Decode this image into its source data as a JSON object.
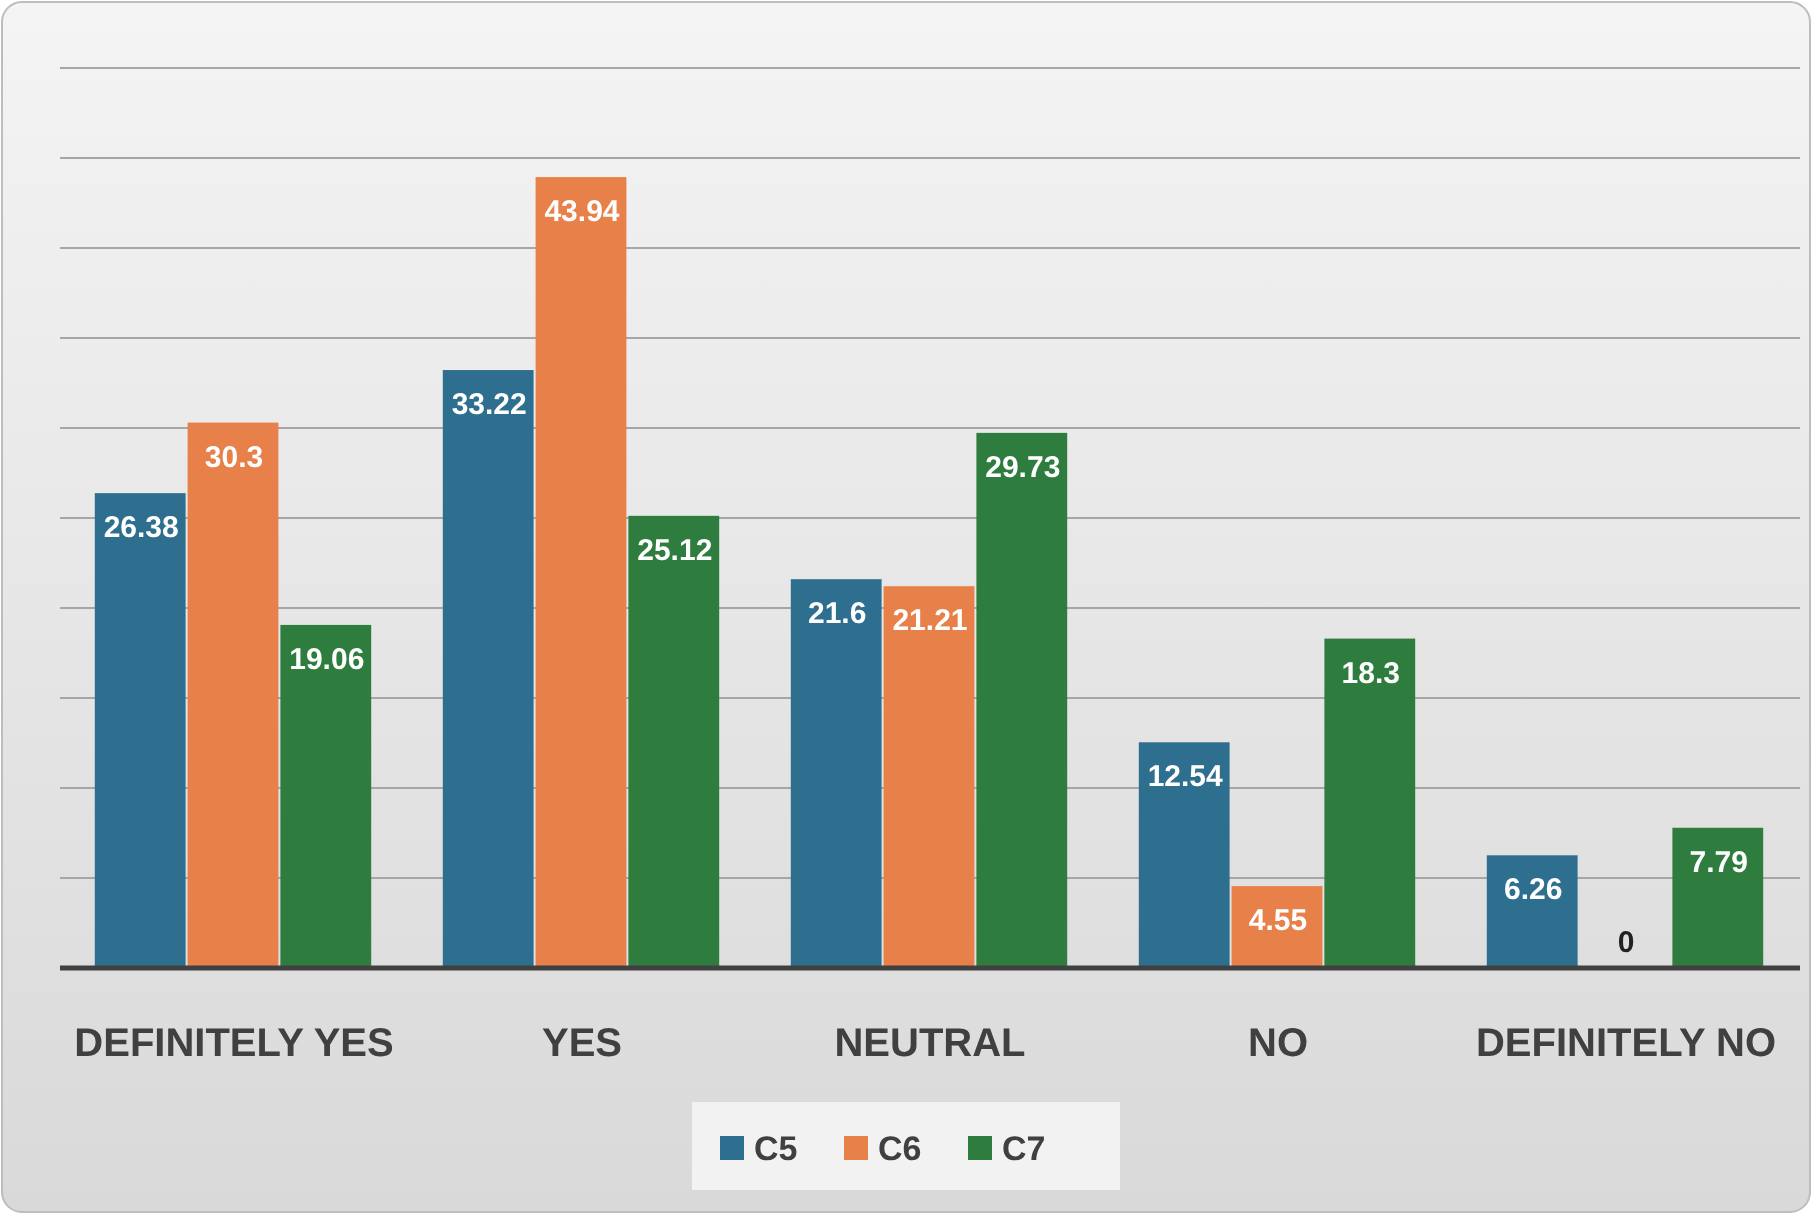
{
  "chart_data": {
    "type": "bar",
    "categories": [
      "DEFINITELY YES",
      "YES",
      "NEUTRAL",
      "NO",
      "DEFINITELY NO"
    ],
    "series": [
      {
        "name": "C5",
        "color": "#2e6e8e",
        "values": [
          26.38,
          33.22,
          21.6,
          12.54,
          6.26
        ]
      },
      {
        "name": "C6",
        "color": "#e8804a",
        "values": [
          30.3,
          43.94,
          21.21,
          4.55,
          0
        ]
      },
      {
        "name": "C7",
        "color": "#2e7d3e",
        "values": [
          19.06,
          25.12,
          29.73,
          18.3,
          7.79
        ]
      }
    ],
    "ylim": [
      0,
      50
    ],
    "yticks": [
      {
        "value": 0,
        "label": null
      },
      {
        "value": 5,
        "label": null
      },
      {
        "value": 10,
        "label": null
      },
      {
        "value": 15,
        "label": null
      },
      {
        "value": 20,
        "label": null
      },
      {
        "value": 25,
        "label": null
      },
      {
        "value": 30,
        "label": null
      },
      {
        "value": 35,
        "label": null
      },
      {
        "value": 40,
        "label": null
      },
      {
        "value": 45,
        "label": null
      },
      {
        "value": 50,
        "label": null
      }
    ],
    "grid": "y",
    "tick_labels": "x",
    "data_labels": true,
    "legend": "bottom"
  }
}
